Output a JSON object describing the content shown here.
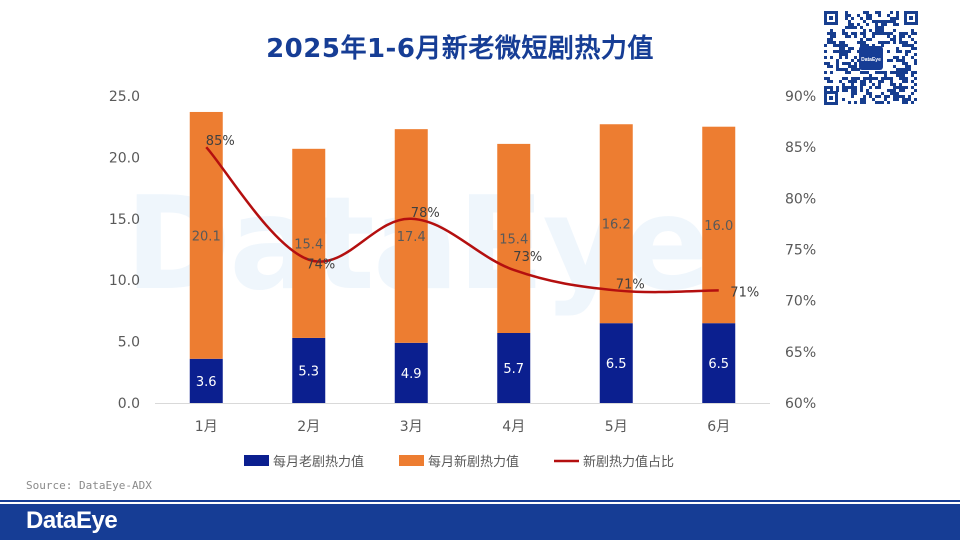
{
  "title": "2025年1-6月新老微短剧热力值",
  "watermark": "DataEye",
  "qr_logo_text": "DataEye",
  "source": "Source: DataEye-ADX",
  "footer_logo": "DataEye",
  "colors": {
    "title": "#163d95",
    "old_series": "#0b1f8f",
    "new_series": "#ed7d31",
    "ratio_line": "#b40f0f",
    "footer": "#163d95"
  },
  "chart_data": {
    "type": "bar",
    "stacked": true,
    "categories": [
      "1月",
      "2月",
      "3月",
      "4月",
      "5月",
      "6月"
    ],
    "series": [
      {
        "name": "每月老剧热力值",
        "type": "bar",
        "axis": "left",
        "values": [
          3.6,
          5.3,
          4.9,
          5.7,
          6.5,
          6.5
        ],
        "labels": [
          "3.6",
          "5.3",
          "4.9",
          "5.7",
          "6.5",
          "6.5"
        ]
      },
      {
        "name": "每月新剧热力值",
        "type": "bar",
        "axis": "left",
        "values": [
          20.1,
          15.4,
          17.4,
          15.4,
          16.2,
          16.0
        ],
        "labels": [
          "20.1",
          "15.4",
          "17.4",
          "15.4",
          "16.2",
          "16.0"
        ]
      },
      {
        "name": "新剧热力值占比",
        "type": "line",
        "axis": "right",
        "values": [
          85,
          74,
          78,
          73,
          71,
          71
        ],
        "labels": [
          "85%",
          "74%",
          "78%",
          "73%",
          "71%",
          "71%"
        ]
      }
    ],
    "y_left": {
      "min": 0,
      "max": 25,
      "ticks": [
        "0.0",
        "5.0",
        "10.0",
        "15.0",
        "20.0",
        "25.0"
      ]
    },
    "y_right": {
      "min": 60,
      "max": 90,
      "ticks": [
        "60%",
        "65%",
        "70%",
        "75%",
        "80%",
        "85%",
        "90%"
      ]
    },
    "legend_position": "bottom",
    "grid": false
  }
}
